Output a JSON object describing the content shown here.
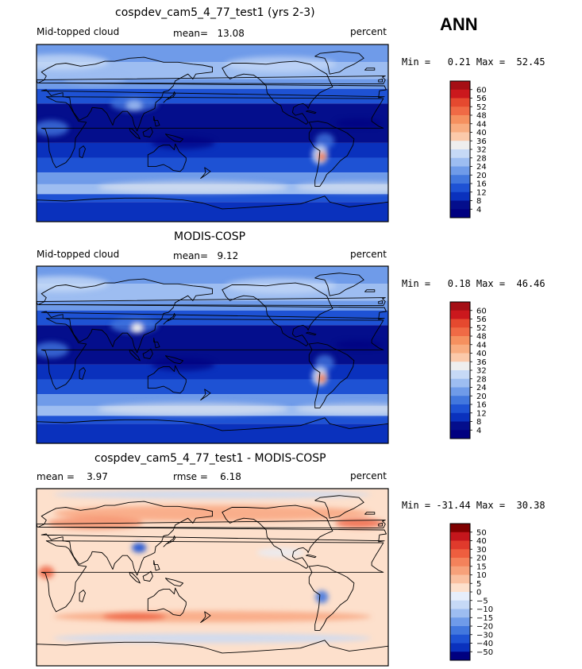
{
  "season": "ANN",
  "panels": [
    {
      "title": "cospdev_cam5_4_77_test1 (yrs 2-3)",
      "left_label": "Mid-topped cloud",
      "center_label": "mean=   13.08",
      "right_label": "percent",
      "minmax": "Min =   0.21 Max =  52.45",
      "kind": "field"
    },
    {
      "title": "MODIS-COSP",
      "left_label": "Mid-topped cloud",
      "center_label": "mean=   9.12",
      "right_label": "percent",
      "minmax": "Min =   0.18 Max =  46.46",
      "kind": "field"
    },
    {
      "title": "cospdev_cam5_4_77_test1 - MODIS-COSP",
      "left_label": "mean =    3.97",
      "center_label": "rmse =    6.18",
      "right_label": "percent",
      "minmax": "Min = -31.44 Max =  30.38",
      "kind": "diff"
    }
  ],
  "chart_data": [
    {
      "type": "heatmap",
      "title": "cospdev_cam5_4_77_test1 (yrs 2-3)",
      "variable": "Mid-topped cloud",
      "units": "percent",
      "mean": 13.08,
      "min": 0.21,
      "max": 52.45,
      "colorbar_levels": [
        "60",
        "56",
        "52",
        "48",
        "44",
        "40",
        "36",
        "32",
        "28",
        "24",
        "20",
        "16",
        "12",
        "8",
        "4"
      ],
      "colorbar_colors": [
        "#a50f15",
        "#cb181d",
        "#e5492f",
        "#f06a45",
        "#f5905f",
        "#f8ac80",
        "#fbc9aa",
        "#eeeeee",
        "#c6d9f6",
        "#9dbdf1",
        "#6f9be9",
        "#4277de",
        "#1e52d4",
        "#0a31bd",
        "#040e8c",
        "#000080"
      ]
    },
    {
      "type": "heatmap",
      "title": "MODIS-COSP",
      "variable": "Mid-topped cloud",
      "units": "percent",
      "mean": 9.12,
      "min": 0.18,
      "max": 46.46,
      "colorbar_levels": [
        "60",
        "56",
        "52",
        "48",
        "44",
        "40",
        "36",
        "32",
        "28",
        "24",
        "20",
        "16",
        "12",
        "8",
        "4"
      ],
      "colorbar_colors": [
        "#a50f15",
        "#cb181d",
        "#e5492f",
        "#f06a45",
        "#f5905f",
        "#f8ac80",
        "#fbc9aa",
        "#eeeeee",
        "#c6d9f6",
        "#9dbdf1",
        "#6f9be9",
        "#4277de",
        "#1e52d4",
        "#0a31bd",
        "#040e8c",
        "#000080"
      ]
    },
    {
      "type": "heatmap",
      "title": "cospdev_cam5_4_77_test1 - MODIS-COSP",
      "units": "percent",
      "mean": 3.97,
      "rmse": 6.18,
      "min": -31.44,
      "max": 30.38,
      "colorbar_levels": [
        "50",
        "40",
        "30",
        "20",
        "15",
        "10",
        "5",
        "0",
        "−5",
        "−10",
        "−15",
        "−20",
        "−30",
        "−40",
        "−50"
      ],
      "colorbar_colors": [
        "#7f0000",
        "#c4161c",
        "#e03a2c",
        "#ee5e3f",
        "#f4825b",
        "#f7a17a",
        "#fac0a0",
        "#fde0cc",
        "#e6eefb",
        "#c6d9f6",
        "#9dbdf1",
        "#6f9be9",
        "#4277de",
        "#1e52d4",
        "#0a31bd",
        "#000080"
      ]
    }
  ]
}
